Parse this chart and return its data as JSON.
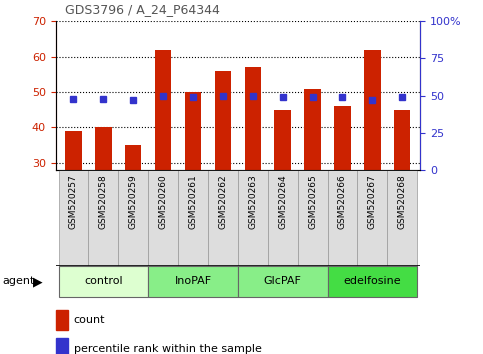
{
  "title": "GDS3796 / A_24_P64344",
  "samples": [
    "GSM520257",
    "GSM520258",
    "GSM520259",
    "GSM520260",
    "GSM520261",
    "GSM520262",
    "GSM520263",
    "GSM520264",
    "GSM520265",
    "GSM520266",
    "GSM520267",
    "GSM520268"
  ],
  "counts": [
    39,
    40,
    35,
    62,
    50,
    56,
    57,
    45,
    51,
    46,
    62,
    45
  ],
  "percentiles": [
    48,
    48,
    47,
    50,
    49,
    50,
    50,
    49,
    49,
    49,
    47,
    49
  ],
  "ylim_left": [
    28,
    70
  ],
  "ylim_right": [
    0,
    100
  ],
  "yticks_left": [
    30,
    40,
    50,
    60,
    70
  ],
  "yticks_right": [
    0,
    25,
    50,
    75,
    100
  ],
  "ytick_labels_right": [
    "0",
    "25",
    "50",
    "75",
    "100%"
  ],
  "bar_color": "#cc2200",
  "dot_color": "#3333cc",
  "groups": [
    {
      "label": "control",
      "start": 0,
      "end": 3,
      "color": "#ddffd0"
    },
    {
      "label": "InoPAF",
      "start": 3,
      "end": 6,
      "color": "#88ee88"
    },
    {
      "label": "GlcPAF",
      "start": 6,
      "end": 9,
      "color": "#88ee88"
    },
    {
      "label": "edelfosine",
      "start": 9,
      "end": 12,
      "color": "#44dd44"
    }
  ],
  "agent_label": "agent",
  "legend_count_label": "count",
  "legend_pct_label": "percentile rank within the sample",
  "left_tick_color": "#cc2200",
  "right_tick_color": "#3333cc",
  "title_color": "#555555"
}
